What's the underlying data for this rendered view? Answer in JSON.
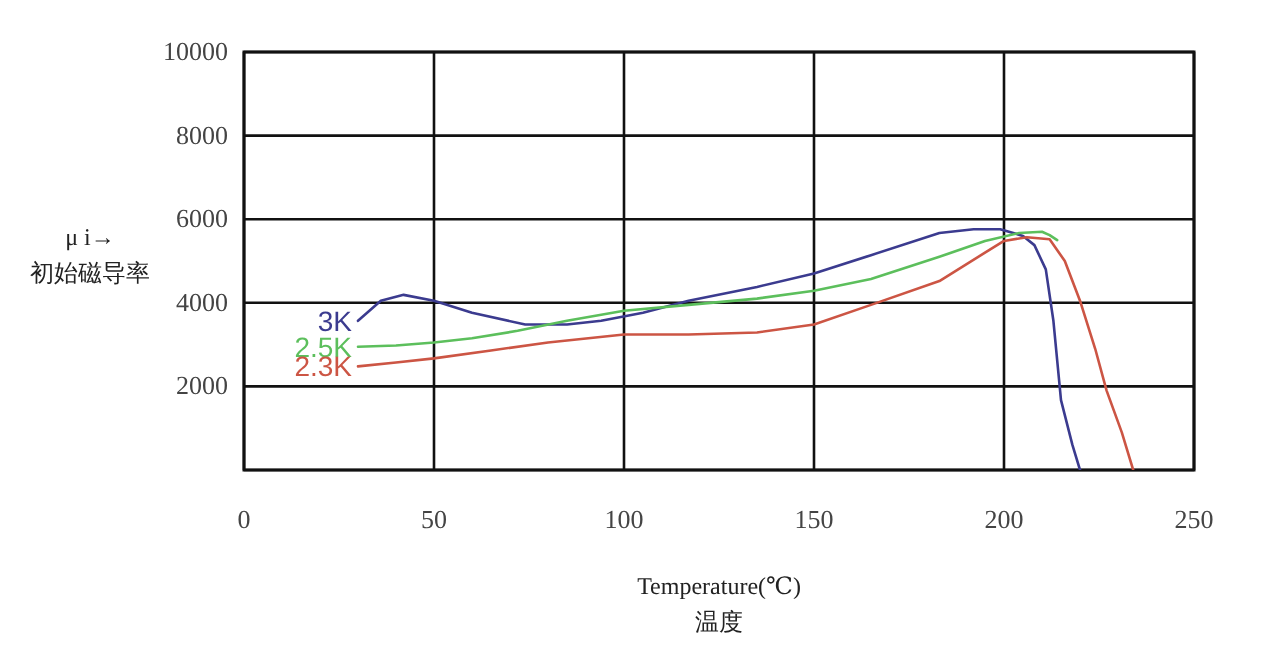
{
  "chart_data": {
    "type": "line",
    "xlabel": "Temperature(℃)\n温度",
    "ylabel": "μ i→\n初始磁导率",
    "xlim": [
      0,
      250
    ],
    "ylim": [
      0,
      10000
    ],
    "xticks": [
      0,
      50,
      100,
      150,
      200,
      250
    ],
    "yticks": [
      {
        "value": 0,
        "label": null
      },
      2000,
      4000,
      6000,
      8000,
      10000
    ],
    "grid": true,
    "series": [
      {
        "name": "3K",
        "color": "#3b3b8f",
        "x": [
          30,
          36,
          42,
          50,
          60,
          74,
          85,
          94,
          105,
          117,
          135,
          150,
          165,
          183,
          192,
          199,
          205,
          208,
          211,
          213,
          215,
          218,
          220
        ],
        "values": [
          3570,
          4050,
          4190,
          4050,
          3760,
          3480,
          3480,
          3570,
          3760,
          4050,
          4380,
          4700,
          5140,
          5670,
          5760,
          5760,
          5600,
          5380,
          4800,
          3570,
          1670,
          600,
          0
        ]
      },
      {
        "name": "2.5K",
        "color": "#5cbf5c",
        "x": [
          30,
          40,
          50,
          60,
          72,
          85,
          100,
          117,
          135,
          150,
          165,
          183,
          195,
          204,
          210,
          212,
          214
        ],
        "values": [
          2950,
          2980,
          3050,
          3150,
          3330,
          3570,
          3810,
          3950,
          4100,
          4290,
          4570,
          5100,
          5480,
          5670,
          5700,
          5620,
          5500
        ]
      },
      {
        "name": "2.3K",
        "color": "#cc5544",
        "x": [
          30,
          40,
          50,
          65,
          80,
          100,
          117,
          135,
          150,
          165,
          183,
          195,
          200,
          206,
          212,
          216,
          220,
          224,
          227,
          231,
          234
        ],
        "values": [
          2480,
          2570,
          2670,
          2860,
          3050,
          3240,
          3240,
          3290,
          3480,
          3950,
          4520,
          5200,
          5480,
          5570,
          5520,
          5000,
          4050,
          2900,
          1900,
          900,
          0
        ]
      }
    ]
  }
}
